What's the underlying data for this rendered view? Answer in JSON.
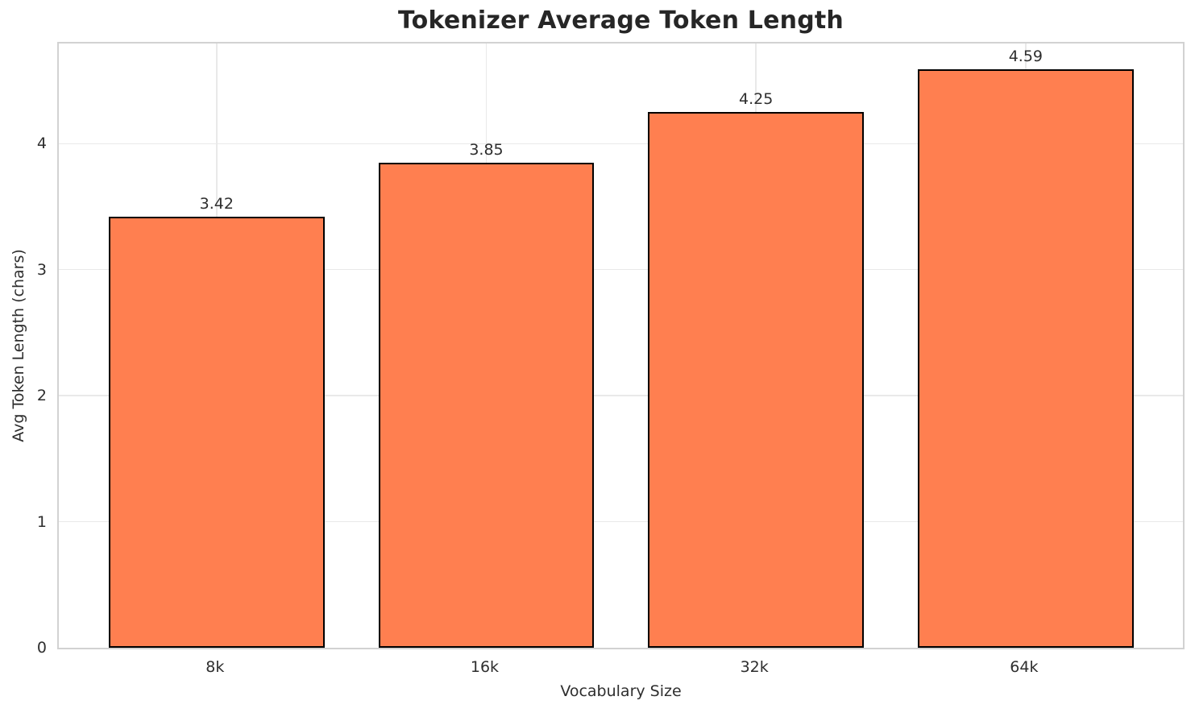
{
  "chart_data": {
    "type": "bar",
    "title": "Tokenizer Average Token Length",
    "xlabel": "Vocabulary Size",
    "ylabel": "Avg Token Length (chars)",
    "categories": [
      "8k",
      "16k",
      "32k",
      "64k"
    ],
    "values": [
      3.42,
      3.85,
      4.25,
      4.59
    ],
    "bar_labels": [
      "3.42",
      "3.85",
      "4.25",
      "4.59"
    ],
    "yticks": [
      0,
      1,
      2,
      3,
      4
    ],
    "ytick_labels": [
      "0",
      "1",
      "2",
      "3",
      "4"
    ],
    "ylim": [
      0,
      4.82
    ],
    "xlim": [
      -0.585,
      3.595
    ],
    "bar_width_units": 0.8,
    "grid": "on",
    "legend": "none",
    "colors": {
      "bar_fill": "#ff7f50",
      "bar_edge": "#000000",
      "grid_line": "#e9e9e9",
      "spine": "#d2d2d2",
      "title_text": "#262626",
      "label_text": "#2e2e2e"
    }
  }
}
